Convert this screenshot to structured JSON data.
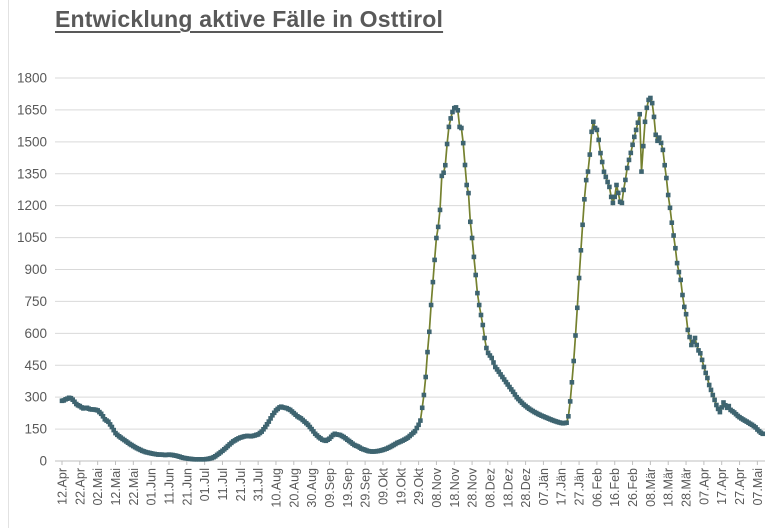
{
  "chart_data": {
    "type": "line",
    "title": "Entwicklung aktive Fälle in Osttirol",
    "xlabel": "",
    "ylabel": "",
    "legend": "none",
    "grid": "horizontal",
    "ylim": [
      0,
      1800
    ],
    "y_ticks": [
      0,
      150,
      300,
      450,
      600,
      750,
      900,
      1050,
      1200,
      1350,
      1500,
      1650,
      1800
    ],
    "x_tick_interval_days": 10,
    "x_tick_labels": [
      "12.Apr",
      "22.Apr",
      "02.Mai",
      "12.Mai",
      "22.Mai",
      "01.Jun",
      "11.Jun",
      "21.Jun",
      "01.Jul",
      "11.Jul",
      "21.Jul",
      "31.Jul",
      "10.Aug",
      "20.Aug",
      "30.Aug",
      "09.Sep",
      "19.Sep",
      "29.Sep",
      "09.Okt",
      "19.Okt",
      "29.Okt",
      "08.Nov",
      "18.Nov",
      "28.Nov",
      "08.Dez",
      "18.Dez",
      "28.Dez",
      "07.Jän",
      "17.Jän",
      "27.Jän",
      "06.Feb",
      "16.Feb",
      "26.Feb",
      "08.Mär",
      "18.Mär",
      "28.Mär",
      "07.Apr",
      "17.Apr",
      "27.Apr",
      "07.Mai"
    ],
    "series": [
      {
        "marker": "square",
        "points": [
          [
            0,
            283
          ],
          [
            1,
            285
          ],
          [
            2,
            290
          ],
          [
            3,
            293
          ],
          [
            4,
            297
          ],
          [
            5,
            295
          ],
          [
            6,
            288
          ],
          [
            7,
            278
          ],
          [
            8,
            268
          ],
          [
            9,
            262
          ],
          [
            10,
            258
          ],
          [
            11,
            252
          ],
          [
            12,
            247
          ],
          [
            13,
            250
          ],
          [
            14,
            250
          ],
          [
            15,
            246
          ],
          [
            16,
            243
          ],
          [
            17,
            242
          ],
          [
            18,
            242
          ],
          [
            19,
            240
          ],
          [
            20,
            238
          ],
          [
            21,
            230
          ],
          [
            22,
            222
          ],
          [
            23,
            210
          ],
          [
            24,
            196
          ],
          [
            25,
            190
          ],
          [
            26,
            184
          ],
          [
            27,
            172
          ],
          [
            28,
            160
          ],
          [
            29,
            145
          ],
          [
            30,
            131
          ],
          [
            31,
            123
          ],
          [
            32,
            116
          ],
          [
            33,
            110
          ],
          [
            34,
            104
          ],
          [
            35,
            98
          ],
          [
            36,
            92
          ],
          [
            37,
            86
          ],
          [
            38,
            80
          ],
          [
            39,
            75
          ],
          [
            40,
            70
          ],
          [
            41,
            65
          ],
          [
            42,
            60
          ],
          [
            43,
            56
          ],
          [
            44,
            52
          ],
          [
            45,
            48
          ],
          [
            46,
            45
          ],
          [
            47,
            42
          ],
          [
            48,
            40
          ],
          [
            50,
            36
          ],
          [
            52,
            33
          ],
          [
            54,
            30
          ],
          [
            56,
            30
          ],
          [
            58,
            28
          ],
          [
            60,
            30
          ],
          [
            62,
            28
          ],
          [
            64,
            25
          ],
          [
            66,
            20
          ],
          [
            68,
            15
          ],
          [
            70,
            12
          ],
          [
            72,
            10
          ],
          [
            74,
            8
          ],
          [
            76,
            8
          ],
          [
            78,
            8
          ],
          [
            80,
            8
          ],
          [
            82,
            10
          ],
          [
            84,
            14
          ],
          [
            86,
            22
          ],
          [
            88,
            35
          ],
          [
            90,
            48
          ],
          [
            92,
            62
          ],
          [
            94,
            78
          ],
          [
            96,
            92
          ],
          [
            98,
            102
          ],
          [
            100,
            110
          ],
          [
            102,
            115
          ],
          [
            104,
            118
          ],
          [
            106,
            116
          ],
          [
            108,
            120
          ],
          [
            110,
            125
          ],
          [
            112,
            138
          ],
          [
            114,
            160
          ],
          [
            116,
            185
          ],
          [
            118,
            215
          ],
          [
            120,
            238
          ],
          [
            122,
            252
          ],
          [
            123,
            255
          ],
          [
            124,
            252
          ],
          [
            126,
            248
          ],
          [
            128,
            240
          ],
          [
            130,
            225
          ],
          [
            132,
            210
          ],
          [
            134,
            200
          ],
          [
            136,
            185
          ],
          [
            138,
            170
          ],
          [
            140,
            150
          ],
          [
            142,
            128
          ],
          [
            144,
            112
          ],
          [
            146,
            100
          ],
          [
            148,
            95
          ],
          [
            150,
            105
          ],
          [
            152,
            122
          ],
          [
            153,
            128
          ],
          [
            154,
            125
          ],
          [
            156,
            122
          ],
          [
            158,
            113
          ],
          [
            160,
            100
          ],
          [
            162,
            88
          ],
          [
            164,
            75
          ],
          [
            166,
            68
          ],
          [
            168,
            58
          ],
          [
            170,
            52
          ],
          [
            172,
            46
          ],
          [
            174,
            44
          ],
          [
            176,
            45
          ],
          [
            178,
            48
          ],
          [
            180,
            52
          ],
          [
            182,
            58
          ],
          [
            184,
            66
          ],
          [
            186,
            75
          ],
          [
            188,
            85
          ],
          [
            190,
            92
          ],
          [
            192,
            100
          ],
          [
            194,
            110
          ],
          [
            196,
            125
          ],
          [
            198,
            140
          ],
          [
            200,
            170
          ],
          [
            201,
            190
          ],
          [
            202,
            250
          ],
          [
            203,
            310
          ],
          [
            204,
            395
          ],
          [
            205,
            512
          ],
          [
            206,
            607
          ],
          [
            207,
            733
          ],
          [
            208,
            841
          ],
          [
            209,
            945
          ],
          [
            210,
            1048
          ],
          [
            211,
            1100
          ],
          [
            212,
            1180
          ],
          [
            213,
            1340
          ],
          [
            214,
            1355
          ],
          [
            215,
            1390
          ],
          [
            216,
            1490
          ],
          [
            217,
            1570
          ],
          [
            218,
            1610
          ],
          [
            219,
            1640
          ],
          [
            220,
            1658
          ],
          [
            221,
            1662
          ],
          [
            222,
            1648
          ],
          [
            223,
            1570
          ],
          [
            224,
            1565
          ],
          [
            225,
            1494
          ],
          [
            226,
            1391
          ],
          [
            227,
            1297
          ],
          [
            228,
            1259
          ],
          [
            229,
            1124
          ],
          [
            230,
            1048
          ],
          [
            231,
            959
          ],
          [
            232,
            874
          ],
          [
            233,
            789
          ],
          [
            234,
            733
          ],
          [
            235,
            686
          ],
          [
            236,
            639
          ],
          [
            237,
            578
          ],
          [
            238,
            531
          ],
          [
            239,
            508
          ],
          [
            241,
            484
          ],
          [
            243,
            442
          ],
          [
            245,
            419
          ],
          [
            247,
            395
          ],
          [
            249,
            371
          ],
          [
            251,
            348
          ],
          [
            253,
            325
          ],
          [
            255,
            300
          ],
          [
            257,
            282
          ],
          [
            259,
            265
          ],
          [
            261,
            252
          ],
          [
            263,
            240
          ],
          [
            265,
            230
          ],
          [
            267,
            221
          ],
          [
            269,
            213
          ],
          [
            271,
            206
          ],
          [
            273,
            199
          ],
          [
            275,
            192
          ],
          [
            277,
            186
          ],
          [
            279,
            181
          ],
          [
            281,
            177
          ],
          [
            283,
            180
          ],
          [
            284,
            210
          ],
          [
            285,
            280
          ],
          [
            286,
            370
          ],
          [
            287,
            470
          ],
          [
            288,
            590
          ],
          [
            289,
            720
          ],
          [
            290,
            860
          ],
          [
            291,
            990
          ],
          [
            292,
            1110
          ],
          [
            293,
            1230
          ],
          [
            294,
            1320
          ],
          [
            295,
            1360
          ],
          [
            296,
            1440
          ],
          [
            297,
            1547
          ],
          [
            298,
            1594
          ],
          [
            299,
            1565
          ],
          [
            300,
            1556
          ],
          [
            301,
            1509
          ],
          [
            302,
            1447
          ],
          [
            303,
            1405
          ],
          [
            304,
            1359
          ],
          [
            305,
            1335
          ],
          [
            306,
            1311
          ],
          [
            307,
            1288
          ],
          [
            308,
            1241
          ],
          [
            309,
            1213
          ],
          [
            310,
            1241
          ],
          [
            311,
            1297
          ],
          [
            312,
            1260
          ],
          [
            313,
            1218
          ],
          [
            314,
            1213
          ],
          [
            315,
            1274
          ],
          [
            316,
            1321
          ],
          [
            317,
            1377
          ],
          [
            318,
            1415
          ],
          [
            319,
            1448
          ],
          [
            320,
            1486
          ],
          [
            321,
            1523
          ],
          [
            322,
            1556
          ],
          [
            323,
            1590
          ],
          [
            324,
            1630
          ],
          [
            325,
            1360
          ],
          [
            326,
            1480
          ],
          [
            327,
            1594
          ],
          [
            328,
            1660
          ],
          [
            329,
            1697
          ],
          [
            330,
            1706
          ],
          [
            331,
            1682
          ],
          [
            332,
            1617
          ],
          [
            333,
            1533
          ],
          [
            334,
            1505
          ],
          [
            335,
            1520
          ],
          [
            336,
            1495
          ],
          [
            337,
            1462
          ],
          [
            338,
            1390
          ],
          [
            339,
            1330
          ],
          [
            340,
            1250
          ],
          [
            341,
            1190
          ],
          [
            342,
            1120
          ],
          [
            343,
            1060
          ],
          [
            344,
            1000
          ],
          [
            345,
            930
          ],
          [
            346,
            888
          ],
          [
            347,
            851
          ],
          [
            348,
            780
          ],
          [
            349,
            724
          ],
          [
            350,
            690
          ],
          [
            351,
            616
          ],
          [
            352,
            583
          ],
          [
            353,
            545
          ],
          [
            354,
            560
          ],
          [
            355,
            578
          ],
          [
            356,
            545
          ],
          [
            357,
            520
          ],
          [
            358,
            506
          ],
          [
            359,
            475
          ],
          [
            360,
            442
          ],
          [
            361,
            414
          ],
          [
            362,
            390
          ],
          [
            363,
            357
          ],
          [
            364,
            334
          ],
          [
            365,
            310
          ],
          [
            366,
            287
          ],
          [
            367,
            263
          ],
          [
            368,
            245
          ],
          [
            369,
            230
          ],
          [
            370,
            252
          ],
          [
            371,
            275
          ],
          [
            372,
            262
          ],
          [
            373,
            250
          ],
          [
            374,
            258
          ],
          [
            375,
            240
          ],
          [
            377,
            228
          ],
          [
            379,
            212
          ],
          [
            381,
            200
          ],
          [
            383,
            190
          ],
          [
            385,
            180
          ],
          [
            387,
            170
          ],
          [
            389,
            158
          ],
          [
            390,
            148
          ],
          [
            391,
            140
          ],
          [
            392,
            133
          ],
          [
            393,
            128
          ]
        ]
      }
    ],
    "colors": {
      "line": "#75812f",
      "marker": "#3e6470",
      "grid": "#d9d9d9",
      "axis": "#bfbfbf",
      "text": "#595959",
      "title": "#595959",
      "background": "#ffffff"
    }
  }
}
